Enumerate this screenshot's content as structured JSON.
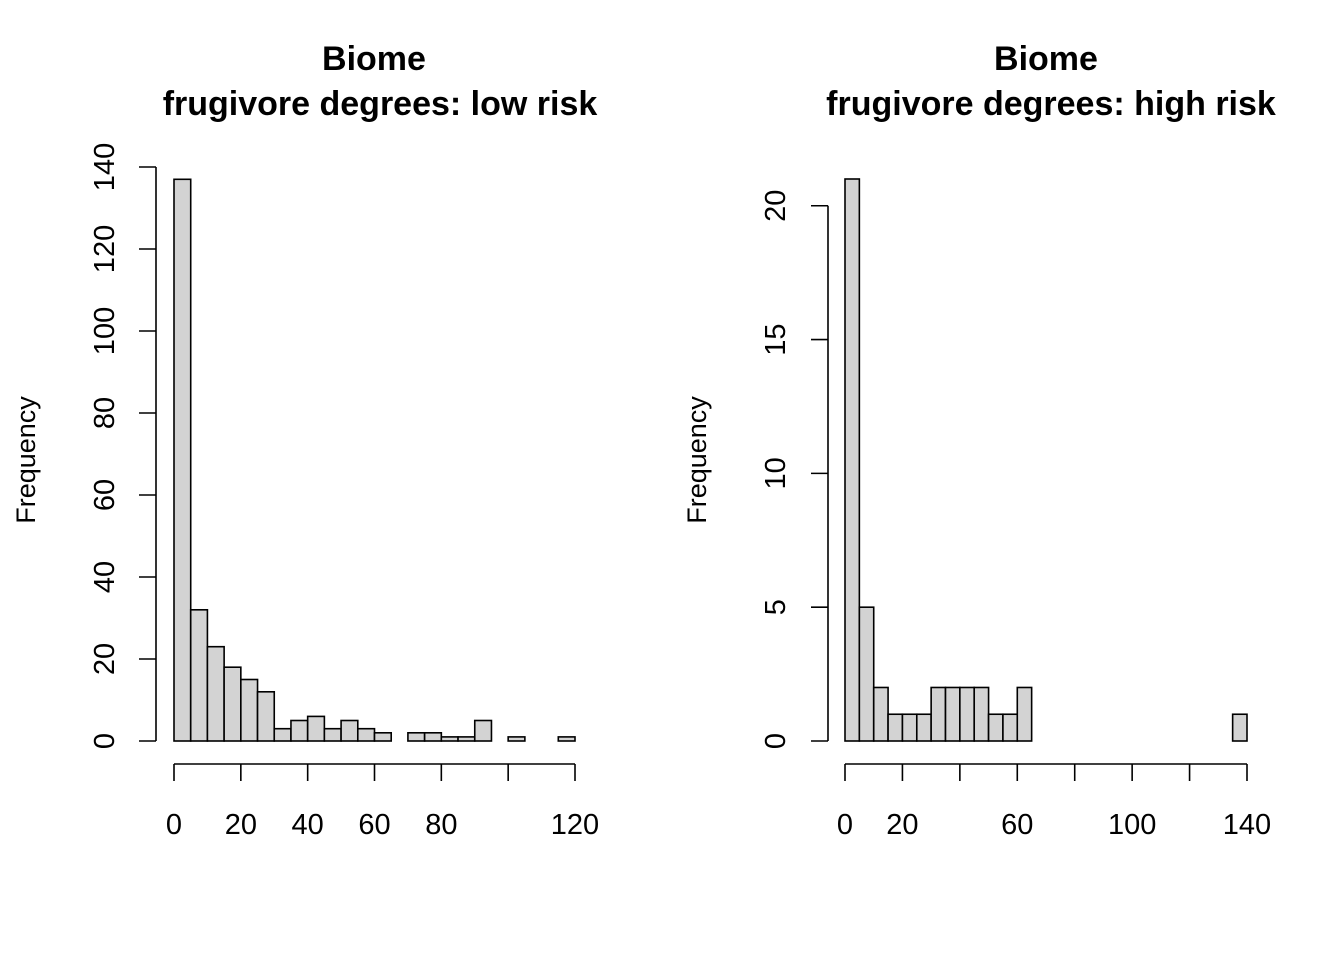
{
  "chart_data": [
    {
      "type": "bar",
      "title": "Biome",
      "subtitle": "frugivore degrees: low risk",
      "xlabel": "",
      "ylabel": "Frequency",
      "bin_width": 5,
      "bins_start": 0,
      "values": [
        137,
        32,
        23,
        18,
        15,
        12,
        3,
        5,
        6,
        3,
        5,
        3,
        2,
        0,
        2,
        2,
        1,
        1,
        5,
        0,
        1,
        0,
        0,
        1
      ],
      "xlim": [
        0,
        120
      ],
      "ylim": [
        0,
        140
      ],
      "xticks": [
        0,
        20,
        40,
        60,
        80,
        100,
        120
      ],
      "xtick_labels": [
        "0",
        "20",
        "40",
        "60",
        "80",
        "",
        "120"
      ],
      "yticks": [
        0,
        20,
        40,
        60,
        80,
        100,
        120,
        140
      ],
      "ytick_labels": [
        "0",
        "20",
        "40",
        "60",
        "80",
        "100",
        "120",
        "140"
      ]
    },
    {
      "type": "bar",
      "title": "Biome",
      "subtitle": "frugivore degrees: high risk",
      "xlabel": "",
      "ylabel": "Frequency",
      "bin_width": 5,
      "bins_start": 0,
      "values": [
        21,
        5,
        2,
        1,
        1,
        1,
        2,
        2,
        2,
        2,
        1,
        1,
        2,
        0,
        0,
        0,
        0,
        0,
        0,
        0,
        0,
        0,
        0,
        0,
        0,
        0,
        0,
        1
      ],
      "xlim": [
        0,
        140
      ],
      "ylim": [
        0,
        21
      ],
      "xticks": [
        0,
        20,
        40,
        60,
        80,
        100,
        120,
        140
      ],
      "xtick_labels": [
        "0",
        "20",
        "",
        "60",
        "",
        "100",
        "",
        "140"
      ],
      "yticks": [
        0,
        5,
        10,
        15,
        20
      ],
      "ytick_labels": [
        "0",
        "5",
        "10",
        "15",
        "20"
      ]
    }
  ]
}
